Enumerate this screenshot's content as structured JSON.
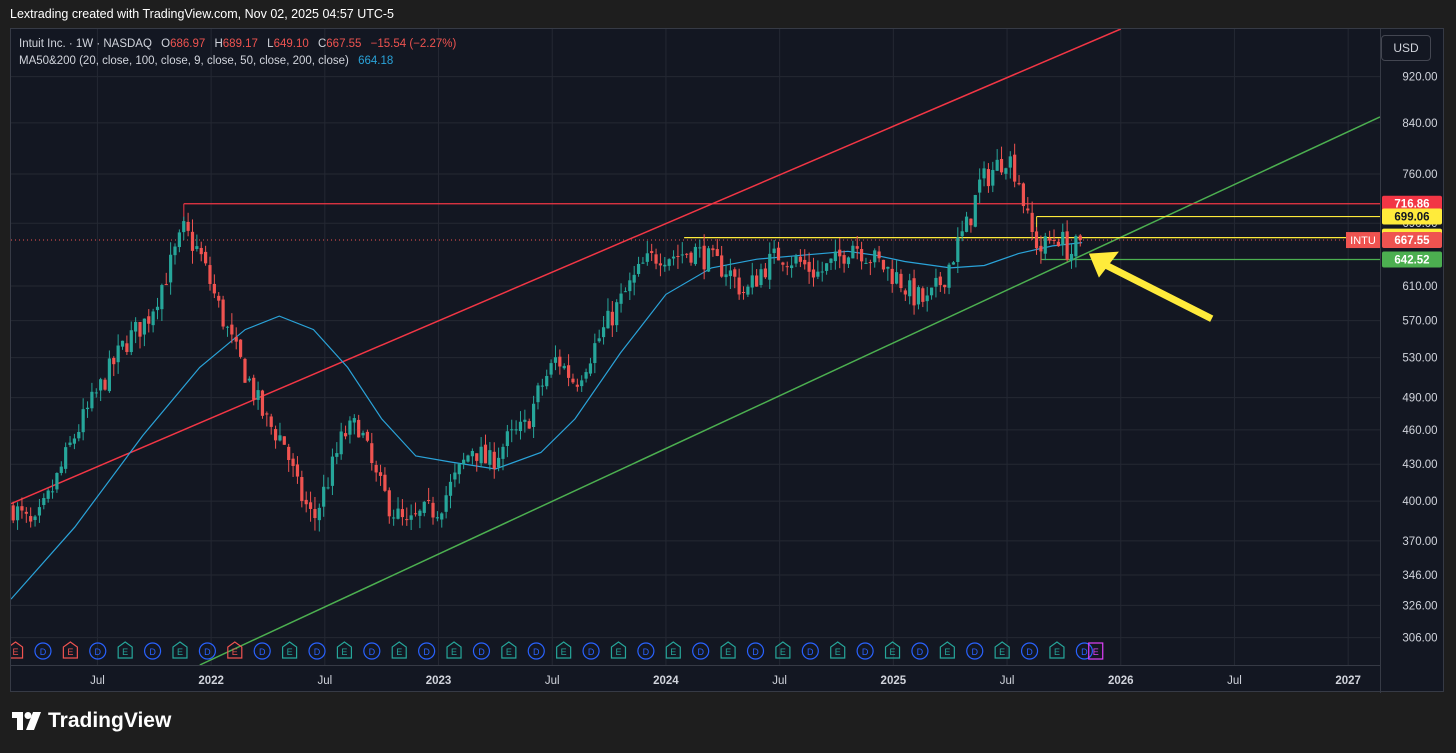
{
  "caption": "Lextrading created with TradingView.com, Nov 02, 2025 04:57 UTC-5",
  "legend": {
    "symbol": "Intuit Inc. · 1W · NASDAQ",
    "o_label": "O",
    "o": "686.97",
    "h_label": "H",
    "h": "689.17",
    "l_label": "L",
    "l": "649.10",
    "c_label": "C",
    "c": "667.55",
    "change": "−15.54 (−2.27%)",
    "ma_label": "MA50&200 (20, close, 100, close, 9, close, 50, close, 200, close)",
    "ma_value": "664.18"
  },
  "currency": "USD",
  "footer_brand": "TradingView",
  "colors": {
    "background": "#131722",
    "up": "#26a69a",
    "down": "#ef5350",
    "ma": "#2aa3d9",
    "red_line": "#f23645",
    "green_line": "#4caf50",
    "yellow_line": "#ffeb3b",
    "arrow": "#ffeb3b",
    "earnings": "#26a69a",
    "earnings_red": "#ef5350",
    "dividend": "#2962ff",
    "upcoming": "#e040fb"
  },
  "chart_data": {
    "type": "candlestick",
    "symbol": "INTU",
    "timeframe": "1W",
    "scale": "log",
    "y_ticks": [
      920,
      840,
      760,
      690,
      610,
      570,
      530,
      490,
      460,
      430,
      400,
      370,
      346,
      326,
      306
    ],
    "x_ticks": [
      {
        "label": "Jul",
        "t": 2021.5
      },
      {
        "label": "2022",
        "t": 2022.0
      },
      {
        "label": "Jul",
        "t": 2022.5
      },
      {
        "label": "2023",
        "t": 2023.0
      },
      {
        "label": "Jul",
        "t": 2023.5
      },
      {
        "label": "2024",
        "t": 2024.0
      },
      {
        "label": "Jul",
        "t": 2024.5
      },
      {
        "label": "2025",
        "t": 2025.0
      },
      {
        "label": "Jul",
        "t": 2025.5
      },
      {
        "label": "2026",
        "t": 2026.0
      },
      {
        "label": "Jul",
        "t": 2026.5
      },
      {
        "label": "2027",
        "t": 2027.0
      }
    ],
    "x_range": [
      2021.12,
      2027.14
    ],
    "y_range": [
      290,
      1010
    ],
    "price_path": [
      [
        2021.13,
        395
      ],
      [
        2021.22,
        378
      ],
      [
        2021.3,
        408
      ],
      [
        2021.4,
        455
      ],
      [
        2021.5,
        495
      ],
      [
        2021.62,
        545
      ],
      [
        2021.72,
        572
      ],
      [
        2021.82,
        635
      ],
      [
        2021.88,
        680
      ],
      [
        2021.95,
        650
      ],
      [
        2022.02,
        595
      ],
      [
        2022.1,
        540
      ],
      [
        2022.17,
        505
      ],
      [
        2022.24,
        468
      ],
      [
        2022.32,
        450
      ],
      [
        2022.38,
        410
      ],
      [
        2022.45,
        385
      ],
      [
        2022.52,
        420
      ],
      [
        2022.58,
        455
      ],
      [
        2022.65,
        465
      ],
      [
        2022.72,
        420
      ],
      [
        2022.79,
        395
      ],
      [
        2022.86,
        380
      ],
      [
        2022.93,
        390
      ],
      [
        2023.0,
        395
      ],
      [
        2023.08,
        420
      ],
      [
        2023.15,
        445
      ],
      [
        2023.22,
        430
      ],
      [
        2023.3,
        450
      ],
      [
        2023.38,
        462
      ],
      [
        2023.45,
        500
      ],
      [
        2023.52,
        530
      ],
      [
        2023.6,
        505
      ],
      [
        2023.67,
        535
      ],
      [
        2023.75,
        570
      ],
      [
        2023.83,
        605
      ],
      [
        2023.9,
        635
      ],
      [
        2023.97,
        650
      ],
      [
        2024.05,
        648
      ],
      [
        2024.12,
        655
      ],
      [
        2024.2,
        640
      ],
      [
        2024.27,
        630
      ],
      [
        2024.35,
        600
      ],
      [
        2024.42,
        630
      ],
      [
        2024.5,
        650
      ],
      [
        2024.58,
        640
      ],
      [
        2024.67,
        625
      ],
      [
        2024.75,
        640
      ],
      [
        2024.82,
        665
      ],
      [
        2024.88,
        650
      ],
      [
        2024.95,
        635
      ],
      [
        2025.02,
        620
      ],
      [
        2025.08,
        600
      ],
      [
        2025.15,
        590
      ],
      [
        2025.22,
        620
      ],
      [
        2025.28,
        660
      ],
      [
        2025.33,
        690
      ],
      [
        2025.38,
        745
      ],
      [
        2025.45,
        770
      ],
      [
        2025.5,
        790
      ],
      [
        2025.55,
        755
      ],
      [
        2025.6,
        680
      ],
      [
        2025.65,
        655
      ],
      [
        2025.72,
        675
      ],
      [
        2025.78,
        650
      ],
      [
        2025.83,
        667.55
      ]
    ],
    "ma_path": [
      [
        2021.12,
        330
      ],
      [
        2021.4,
        380
      ],
      [
        2021.7,
        455
      ],
      [
        2021.95,
        520
      ],
      [
        2022.15,
        560
      ],
      [
        2022.3,
        575
      ],
      [
        2022.45,
        560
      ],
      [
        2022.6,
        520
      ],
      [
        2022.75,
        470
      ],
      [
        2022.9,
        437
      ],
      [
        2023.05,
        432
      ],
      [
        2023.25,
        426
      ],
      [
        2023.45,
        440
      ],
      [
        2023.6,
        470
      ],
      [
        2023.8,
        535
      ],
      [
        2024.0,
        600
      ],
      [
        2024.2,
        632
      ],
      [
        2024.4,
        643
      ],
      [
        2024.6,
        648
      ],
      [
        2024.8,
        653
      ],
      [
        2024.92,
        648
      ],
      [
        2025.05,
        640
      ],
      [
        2025.25,
        632
      ],
      [
        2025.4,
        635
      ],
      [
        2025.55,
        650
      ],
      [
        2025.7,
        660
      ],
      [
        2025.83,
        664.18
      ]
    ],
    "ma_value": 664.18,
    "last_price": 667.55,
    "horizontal_levels": [
      {
        "value": 716.86,
        "color": "red",
        "from": 2021.88,
        "label": "716.86"
      },
      {
        "value": 699.06,
        "color": "yellow",
        "from": 2025.63,
        "label": "699.06"
      },
      {
        "value": 670.73,
        "color": "yellow",
        "from": 2024.08,
        "label": "670.73"
      },
      {
        "value": 642.52,
        "color": "green",
        "from": 2025.65,
        "label": "642.52"
      }
    ],
    "trendlines": [
      {
        "name": "",
        "color": "red",
        "points": [
          [
            2021.12,
            398
          ],
          [
            2026.0,
            1010
          ]
        ]
      },
      {
        "name": "",
        "color": "green",
        "points": [
          [
            2021.95,
            290
          ],
          [
            2027.14,
            850
          ]
        ]
      }
    ],
    "events": [
      "E",
      "D",
      "E",
      "D",
      "E",
      "D",
      "E",
      "D",
      "E",
      "D",
      "E",
      "D",
      "E",
      "D",
      "E",
      "D",
      "E",
      "D",
      "E",
      "D",
      "E",
      "D",
      "E",
      "D",
      "E",
      "D",
      "E",
      "D",
      "E",
      "D",
      "E",
      "D",
      "E",
      "D",
      "E",
      "D",
      "E",
      "D",
      "E",
      "D"
    ]
  }
}
